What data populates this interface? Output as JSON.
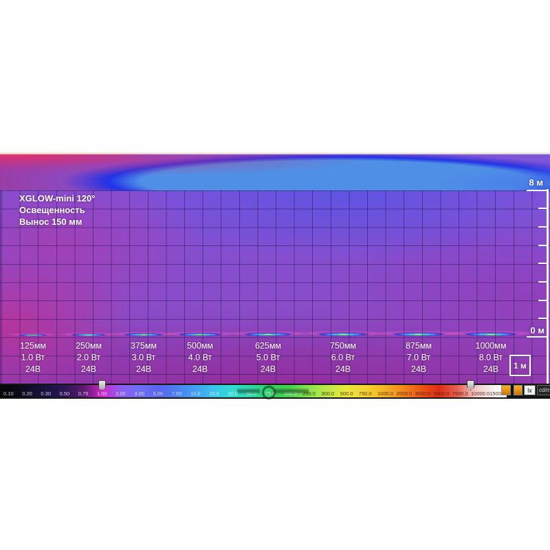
{
  "header": {
    "product": "XGLOW-mini 120°",
    "metric": "Освещенность",
    "offset": "Вынос 150 мм"
  },
  "axis": {
    "top": "8 м",
    "bottom": "0 м",
    "scale_box": "1 м"
  },
  "fixtures": [
    {
      "size": "125мм",
      "power": "1.0 Вт",
      "voltage": "24В"
    },
    {
      "size": "250мм",
      "power": "2.0 Вт",
      "voltage": "24В"
    },
    {
      "size": "375мм",
      "power": "3.0 Вт",
      "voltage": "24В"
    },
    {
      "size": "500мм",
      "power": "4.0 Вт",
      "voltage": "24В"
    },
    {
      "size": "625мм",
      "power": "5.0 Вт",
      "voltage": "24В"
    },
    {
      "size": "750мм",
      "power": "6.0 Вт",
      "voltage": "24В"
    },
    {
      "size": "875мм",
      "power": "7.0 Вт",
      "voltage": "24В"
    },
    {
      "size": "1000мм",
      "power": "8.0 Вт",
      "voltage": "24В"
    }
  ],
  "colorbar": {
    "ticks": [
      "0.10",
      "0.20",
      "0.30",
      "0.50",
      "0.75",
      "1.00",
      "2.00",
      "3.00",
      "5.00",
      "7.50",
      "10.0",
      "20.0",
      "30.0",
      "50.0",
      "75.0",
      "100.0",
      "200.0",
      "300.0",
      "500.0",
      "750.0",
      "1000.0",
      "2000.0",
      "3000.0",
      "5000.0",
      "7500.0",
      "10000.0",
      "15000.0"
    ],
    "unit_lx": "lx",
    "unit_cdm2": "cd/m²"
  },
  "chart_data": {
    "type": "heatmap",
    "title": "XGLOW-mini 120° — Освещенность (Вынос 150 мм)",
    "unit": "lx",
    "y_axis": {
      "label_top": "8 м",
      "label_bottom": "0 м",
      "range_m": [
        0,
        8
      ],
      "grid_cell_m": 1
    },
    "color_scale_lx": [
      0.1,
      0.2,
      0.3,
      0.5,
      0.75,
      1.0,
      2.0,
      3.0,
      5.0,
      7.5,
      10.0,
      20.0,
      30.0,
      50.0,
      75.0,
      100.0,
      200.0,
      300.0,
      500.0,
      750.0,
      1000.0,
      2000.0,
      3000.0,
      5000.0,
      7500.0,
      10000.0,
      15000.0
    ],
    "series": [
      {
        "name": "XGLOW-mini fixtures",
        "points": [
          {
            "length_mm": 125,
            "power_w": 1.0,
            "voltage_v": 24
          },
          {
            "length_mm": 250,
            "power_w": 2.0,
            "voltage_v": 24
          },
          {
            "length_mm": 375,
            "power_w": 3.0,
            "voltage_v": 24
          },
          {
            "length_mm": 500,
            "power_w": 4.0,
            "voltage_v": 24
          },
          {
            "length_mm": 625,
            "power_w": 5.0,
            "voltage_v": 24
          },
          {
            "length_mm": 750,
            "power_w": 6.0,
            "voltage_v": 24
          },
          {
            "length_mm": 875,
            "power_w": 7.0,
            "voltage_v": 24
          },
          {
            "length_mm": 1000,
            "power_w": 8.0,
            "voltage_v": 24
          }
        ]
      }
    ]
  }
}
